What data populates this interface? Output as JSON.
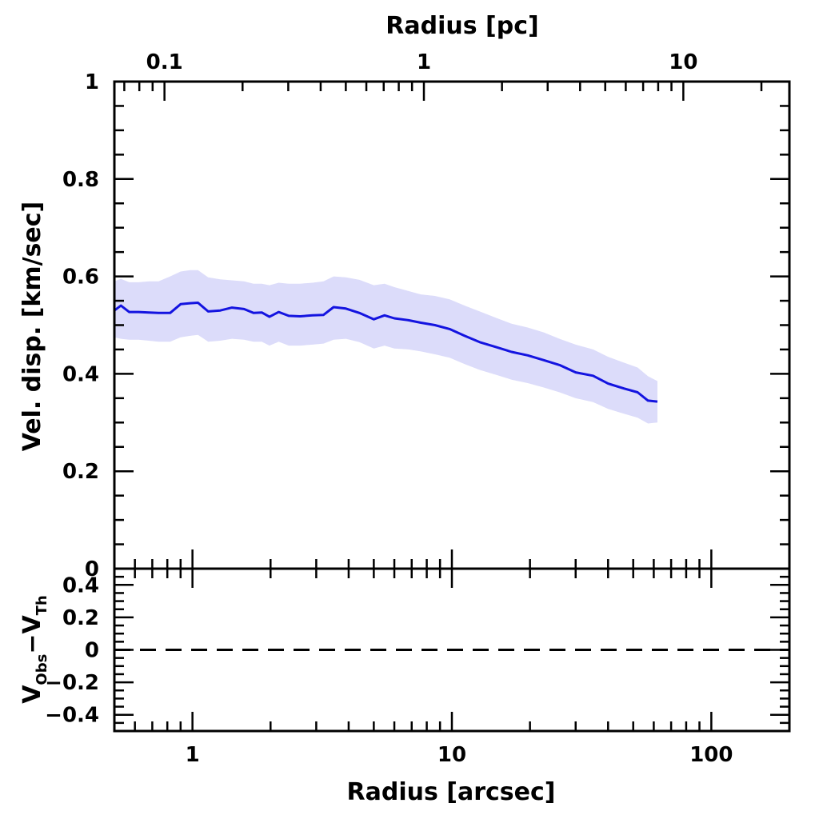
{
  "chart_data": {
    "type": "line",
    "colors": {
      "line": "#1414e0",
      "band": "#dcdcfa",
      "zero_line": "#000000"
    },
    "top_axis": {
      "label": "Radius [pc]",
      "scale": "log",
      "tick_labels": [
        "0.1",
        "1",
        "10"
      ],
      "tick_values": [
        0.1,
        1,
        10
      ]
    },
    "bottom_axis": {
      "label": "Radius [arcsec]",
      "scale": "log",
      "xlim": [
        0.5,
        200
      ],
      "tick_labels": [
        "1",
        "10",
        "100"
      ],
      "tick_values": [
        1,
        10,
        100
      ]
    },
    "main_panel": {
      "ylabel": "Vel. disp. [km/sec]",
      "ylim": [
        0,
        1
      ],
      "tick_labels": [
        "0",
        "0.2",
        "0.4",
        "0.6",
        "0.8",
        "1"
      ],
      "tick_values": [
        0,
        0.2,
        0.4,
        0.6,
        0.8,
        1
      ],
      "series": [
        {
          "x": [
            0.5,
            0.53,
            0.57,
            0.62,
            0.68,
            0.74,
            0.82,
            0.9,
            0.98,
            1.05,
            1.15,
            1.28,
            1.42,
            1.58,
            1.72,
            1.85,
            1.98,
            2.15,
            2.35,
            2.6,
            2.9,
            3.2,
            3.5,
            3.9,
            4.4,
            5.0,
            5.5,
            6.0,
            6.8,
            7.6,
            8.6,
            9.8,
            11.2,
            12.8,
            14.8,
            17.0,
            19.6,
            22.6,
            26.0,
            30.0,
            35.0,
            40.0,
            46.0,
            52.0,
            57.0,
            62.0
          ],
          "y": [
            0.53,
            0.54,
            0.527,
            0.527,
            0.526,
            0.525,
            0.525,
            0.543,
            0.545,
            0.546,
            0.528,
            0.53,
            0.536,
            0.533,
            0.525,
            0.526,
            0.517,
            0.527,
            0.519,
            0.518,
            0.52,
            0.521,
            0.537,
            0.534,
            0.525,
            0.512,
            0.52,
            0.514,
            0.51,
            0.505,
            0.5,
            0.492,
            0.478,
            0.465,
            0.455,
            0.445,
            0.438,
            0.428,
            0.418,
            0.403,
            0.396,
            0.38,
            0.37,
            0.362,
            0.345,
            0.343
          ],
          "upper": [
            0.59,
            0.595,
            0.588,
            0.588,
            0.59,
            0.59,
            0.6,
            0.61,
            0.613,
            0.613,
            0.598,
            0.594,
            0.592,
            0.59,
            0.585,
            0.585,
            0.582,
            0.587,
            0.585,
            0.585,
            0.587,
            0.59,
            0.6,
            0.598,
            0.593,
            0.582,
            0.585,
            0.578,
            0.57,
            0.563,
            0.56,
            0.553,
            0.54,
            0.528,
            0.515,
            0.503,
            0.495,
            0.485,
            0.472,
            0.46,
            0.45,
            0.435,
            0.423,
            0.413,
            0.395,
            0.385
          ],
          "lower": [
            0.475,
            0.472,
            0.47,
            0.47,
            0.468,
            0.466,
            0.466,
            0.475,
            0.478,
            0.48,
            0.466,
            0.468,
            0.472,
            0.47,
            0.466,
            0.466,
            0.458,
            0.466,
            0.458,
            0.458,
            0.46,
            0.462,
            0.47,
            0.472,
            0.465,
            0.452,
            0.458,
            0.452,
            0.45,
            0.446,
            0.44,
            0.433,
            0.42,
            0.408,
            0.398,
            0.388,
            0.381,
            0.372,
            0.362,
            0.35,
            0.342,
            0.328,
            0.318,
            0.31,
            0.298,
            0.3
          ]
        }
      ]
    },
    "residual_panel": {
      "ylabel_main": "V",
      "ylabel_sub1": "Obs",
      "ylabel_dash": "−V",
      "ylabel_sub2": "Th",
      "ylim": [
        -0.5,
        0.5
      ],
      "tick_labels": [
        "−0.4",
        "−0.2",
        "0",
        "0.2",
        "0.4"
      ],
      "tick_values": [
        -0.4,
        -0.2,
        0,
        0.2,
        0.4
      ],
      "zero_line": 0
    }
  }
}
